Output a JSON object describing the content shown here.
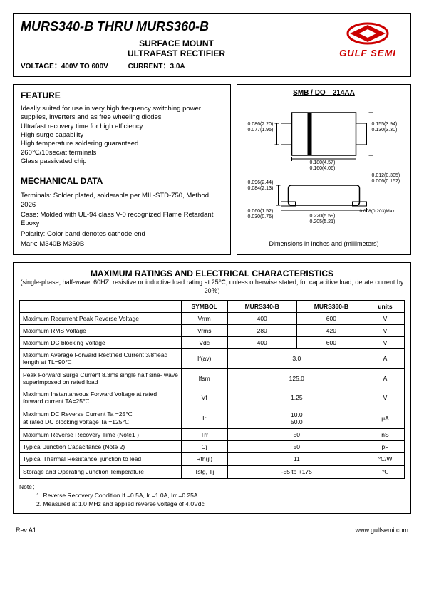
{
  "header": {
    "title": "MURS340-B THRU MURS360-B",
    "subtitle1": "SURFACE  MOUNT",
    "subtitle2": "ULTRAFAST  RECTIFIER",
    "voltage_label": "VOLTAGE：400V TO 600V",
    "current_label": "CURRENT：3.0A",
    "logo_text": "GULF SEMI",
    "logo_color": "#cc0000"
  },
  "feature": {
    "heading": "FEATURE",
    "lines": [
      "Ideally suited for use in very high frequency switching power supplies, inverters and as free wheeling diodes",
      "Ultrafast recovery time for high efficiency",
      "High surge capability",
      "High temperature soldering guaranteed",
      "260℃/10sec/at terminals",
      "Glass passivated chip"
    ]
  },
  "mechanical": {
    "heading": "MECHANICAL DATA",
    "terminals": "Terminals: Solder plated, solderable per MIL-STD-750, Method 2026",
    "case": "Case: Molded with UL-94 class V-0 recognized Flame Retardant Epoxy",
    "polarity": "Polarity: Color band denotes cathode end",
    "mark": "Mark: M340B  M360B"
  },
  "diagram": {
    "title": "SMB / DO—214AA",
    "caption": "Dimensions in inches and (millimeters)",
    "dims": {
      "top_left_1": "0.086(2.20)",
      "top_left_2": "0.077(1.95)",
      "top_right_1": "0.155(3.94)",
      "top_right_2": "0.130(3.30)",
      "mid_1": "0.180(4.57)",
      "mid_2": "0.160(4.06)",
      "bot_left_t1": "0.096(2.44)",
      "bot_left_t2": "0.084(2.13)",
      "bot_right_t1": "0.012(0.305)",
      "bot_right_t2": "0.006(0.152)",
      "bot_left_b1": "0.060(1.52)",
      "bot_left_b2": "0.030(0.76)",
      "bot_right_b1": "0.008(0.203)Max.",
      "bot_mid_1": "0.220(5.59)",
      "bot_mid_2": "0.205(5.21)"
    }
  },
  "ratings": {
    "title": "MAXIMUM  RATINGS  AND  ELECTRICAL  CHARACTERISTICS",
    "subtitle": "(single-phase, half-wave, 60HZ, resistive or inductive load rating at 25℃, unless otherwise stated, for capacitive load, derate current by 20％)",
    "headers": [
      "",
      "SYMBOL",
      "MURS340-B",
      "MURS360-B",
      "units"
    ],
    "rows": [
      {
        "param": "Maximum Recurrent Peak Reverse Voltage",
        "symbol": "Vrrm",
        "col1": "400",
        "col2": "600",
        "unit": "V",
        "span": false
      },
      {
        "param": "Maximum RMS Voltage",
        "symbol": "Vrms",
        "col1": "280",
        "col2": "420",
        "unit": "V",
        "span": false
      },
      {
        "param": "Maximum DC blocking Voltage",
        "symbol": "Vdc",
        "col1": "400",
        "col2": "600",
        "unit": "V",
        "span": false
      },
      {
        "param": "Maximum Average Forward Rectified Current 3/8\"lead length at TL=90℃",
        "symbol": "If(av)",
        "col1": "3.0",
        "col2": "",
        "unit": "A",
        "span": true
      },
      {
        "param": "Peak Forward Surge Current 8.3ms single half sine- wave superimposed on rated load",
        "symbol": "Ifsm",
        "col1": "125.0",
        "col2": "",
        "unit": "A",
        "span": true
      },
      {
        "param": "Maximum Instantaneous Forward Voltage at rated forward current  TA=25℃",
        "symbol": "Vf",
        "col1": "1.25",
        "col2": "",
        "unit": "V",
        "span": true
      },
      {
        "param": "Maximum DC Reverse Current        Ta =25℃\nat rated DC blocking voltage          Ta =125℃",
        "symbol": "Ir",
        "col1": "10.0\n50.0",
        "col2": "",
        "unit": "μA",
        "span": true
      },
      {
        "param": "Maximum Reverse Recovery Time   (Note1 )",
        "symbol": "Trr",
        "col1": "50",
        "col2": "",
        "unit": "nS",
        "span": true
      },
      {
        "param": "Typical Junction Capacitance          (Note 2)",
        "symbol": "Cj",
        "col1": "50",
        "col2": "",
        "unit": "pF",
        "span": true
      },
      {
        "param": "Typical Thermal Resistance, junction to lead",
        "symbol": "Rth(jl)",
        "col1": "11",
        "col2": "",
        "unit": "℃/W",
        "span": true
      },
      {
        "param": "Storage and Operating Junction Temperature",
        "symbol": "Tstg, Tj",
        "col1": "-55 to +175",
        "col2": "",
        "unit": "℃",
        "span": true
      }
    ],
    "notes_label": "Note：",
    "note1": "1. Reverse Recovery Condition If =0.5A, Ir =1.0A, Irr =0.25A",
    "note2": "2. Measured at 1.0 MHz and applied reverse voltage of 4.0Vdc"
  },
  "footer": {
    "rev": "Rev.A1",
    "url": "www.gulfsemi.com"
  },
  "colors": {
    "border": "#000000",
    "logo": "#cc0000",
    "bg": "#ffffff"
  }
}
